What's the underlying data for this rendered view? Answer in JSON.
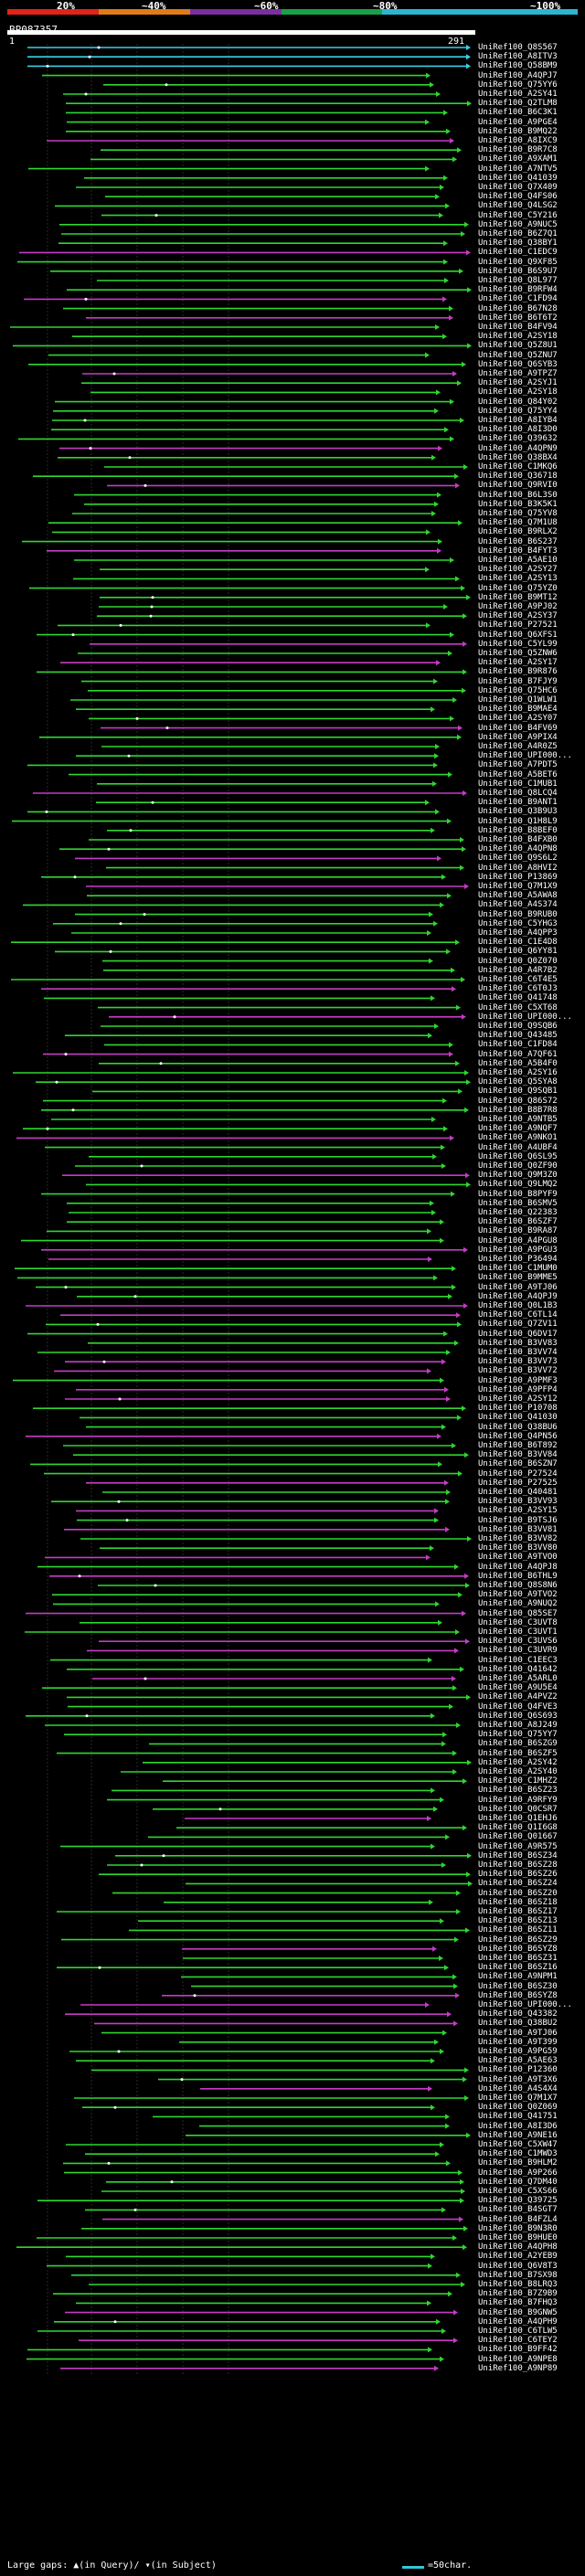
{
  "query_id": "BP087357",
  "footer": {
    "gaps_label": "Large gaps:",
    "gaps_query": "(in Query)/",
    "gaps_subject": "(in Subject)",
    "legend_label": "=50char."
  },
  "colors": {
    "red": "#e3231b",
    "orange": "#e07b1a",
    "purple": "#7b2ea0",
    "green": "#1aa04a",
    "cyan": "#29b7d0",
    "hit_green": "#2fd62f",
    "hit_magenta": "#c43cc4",
    "hit_cyan": "#3ad0e8"
  },
  "chart_data": {
    "type": "alignment-overview",
    "title": "BP087357",
    "identity_scale": [
      "20%",
      "~40%",
      "~60%",
      "~80%",
      "~100%"
    ],
    "query_range": [
      1,
      291
    ],
    "axis_labels": [
      "1",
      "291"
    ],
    "hits": [
      "UniRef100_Q8S567",
      "UniRef100_A8ITV3",
      "UniRef100_Q58BM9",
      "UniRef100_A4QPJ7",
      "UniRef100_Q75YY6",
      "UniRef100_A2SY41",
      "UniRef100_Q2TLM8",
      "UniRef100_B6C3K1",
      "UniRef100_A9PGE4",
      "UniRef100_B9MQ22",
      "UniRef100_A8IXC9",
      "UniRef100_B9R7C8",
      "UniRef100_A9XAM1",
      "UniRef100_A7NTV5",
      "UniRef100_Q41039",
      "UniRef100_Q7X409",
      "UniRef100_Q4FS06",
      "UniRef100_Q4LSG2",
      "UniRef100_C5Y216",
      "UniRef100_A9NUC5",
      "UniRef100_B6Z7Q1",
      "UniRef100_Q38BY1",
      "UniRef100_C1EDC9",
      "UniRef100_Q9XF85",
      "UniRef100_B6S9U7",
      "UniRef100_Q8L977",
      "UniRef100_B9RFW4",
      "UniRef100_C1FD94",
      "UniRef100_B67N28",
      "UniRef100_B6T6T2",
      "UniRef100_B4FV94",
      "UniRef100_A2SY18",
      "UniRef100_Q5Z8U1",
      "UniRef100_Q5ZNU7",
      "UniRef100_Q6SYB3",
      "UniRef100_A9TPZ7",
      "UniRef100_A2SYJ1",
      "UniRef100_A2SY18",
      "UniRef100_Q84Y02",
      "UniRef100_Q75YY4",
      "UniRef100_A8IYB4",
      "UniRef100_A8I3D0",
      "UniRef100_Q39632",
      "UniRef100_A4QPN9",
      "UniRef100_Q38BX4",
      "UniRef100_C1MKQ6",
      "UniRef100_Q36718",
      "UniRef100_Q9RVI0",
      "UniRef100_B6L3S0",
      "UniRef100_B3K5K1",
      "UniRef100_Q75YV8",
      "UniRef100_Q7M1U8",
      "UniRef100_B9RLX2",
      "UniRef100_B6S237",
      "UniRef100_B4FYT3",
      "UniRef100_A5AE10",
      "UniRef100_A2SY27",
      "UniRef100_A2SY13",
      "UniRef100_Q75YZ0",
      "UniRef100_B9MT12",
      "UniRef100_A9PJ02",
      "UniRef100_A2SY37",
      "UniRef100_P27521",
      "UniRef100_Q6XFS1",
      "UniRef100_C5YL99",
      "UniRef100_Q5ZNW6",
      "UniRef100_A2SY17",
      "UniRef100_B9R876",
      "UniRef100_B7FJY9",
      "UniRef100_Q75HC6",
      "UniRef100_Q1WLW1",
      "UniRef100_B9MAE4",
      "UniRef100_A2SY07",
      "UniRef100_B4FV69",
      "UniRef100_A9PIX4",
      "UniRef100_A4R0Z5",
      "UniRef100_UPI000...",
      "UniRef100_A7PDT5",
      "UniRef100_A5BET6",
      "UniRef100_C1MUB1",
      "UniRef100_Q8LCQ4",
      "UniRef100_B9ANT1",
      "UniRef100_Q3B9U3",
      "UniRef100_Q1H8L9",
      "UniRef100_B8BEF0",
      "UniRef100_B4FXB0",
      "UniRef100_A4QPN8",
      "UniRef100_Q9S6L2",
      "UniRef100_A8HVI2",
      "UniRef100_P13869",
      "UniRef100_Q7M1X9",
      "UniRef100_A5AWA8",
      "UniRef100_A4S374",
      "UniRef100_B9RUB0",
      "UniRef100_C5YHG3",
      "UniRef100_A4QPP3",
      "UniRef100_C1E4D8",
      "UniRef100_Q6YY81",
      "UniRef100_Q0Z070",
      "UniRef100_A4R7B2",
      "UniRef100_C6T4E5",
      "UniRef100_C6T0J3",
      "UniRef100_Q41748",
      "UniRef100_C5XT68",
      "UniRef100_UPI000...",
      "UniRef100_Q9SQB6",
      "UniRef100_Q43485",
      "UniRef100_C1FD84",
      "UniRef100_A7QF61",
      "UniRef100_A5B4F0",
      "UniRef100_A2SY16",
      "UniRef100_Q5SYA8",
      "UniRef100_Q9SQB1",
      "UniRef100_Q86S72",
      "UniRef100_B8B7R8",
      "UniRef100_A9NTB5",
      "UniRef100_A9NQF7",
      "UniRef100_A9NKO1",
      "UniRef100_A4UBF4",
      "UniRef100_Q6SL95",
      "UniRef100_Q0ZF90",
      "UniRef100_Q9M3Z0",
      "UniRef100_Q9LMQ2",
      "UniRef100_B8PYF9",
      "UniRef100_B6SMV5",
      "UniRef100_Q22383",
      "UniRef100_B6SZF7",
      "UniRef100_B9RA87",
      "UniRef100_A4PGU8",
      "UniRef100_A9PGU3",
      "UniRef100_P36494",
      "UniRef100_C1MUM0",
      "UniRef100_B9MME5",
      "UniRef100_A9TJ06",
      "UniRef100_A4QPJ9",
      "UniRef100_Q0L1B3",
      "UniRef100_C6TL14",
      "UniRef100_Q7ZV11",
      "UniRef100_Q6DV17",
      "UniRef100_B3VV83",
      "UniRef100_B3VV74",
      "UniRef100_B3VV73",
      "UniRef100_B3VV72",
      "UniRef100_A9PMF3",
      "UniRef100_A9PFP4",
      "UniRef100_A2SY12",
      "UniRef100_P10708",
      "UniRef100_Q41030",
      "UniRef100_Q38BU6",
      "UniRef100_Q4PN56",
      "UniRef100_B6T892",
      "UniRef100_B3VV84",
      "UniRef100_B6SZN7",
      "UniRef100_P27524",
      "UniRef100_P27525",
      "UniRef100_Q40481",
      "UniRef100_B3VV93",
      "UniRef100_A2SY15",
      "UniRef100_B9TSJ6",
      "UniRef100_B3VV81",
      "UniRef100_B3VV82",
      "UniRef100_B3VV80",
      "UniRef100_A9TVO0",
      "UniRef100_A4QPJ8",
      "UniRef100_B6THL9",
      "UniRef100_Q8S8N6",
      "UniRef100_A9TVO2",
      "UniRef100_A9NUQ2",
      "UniRef100_Q85SE7",
      "UniRef100_C3UVT8",
      "UniRef100_C3UVT1",
      "UniRef100_C3UVS6",
      "UniRef100_C3UVR9",
      "UniRef100_C1EEC3",
      "UniRef100_Q41642",
      "UniRef100_A5ARL0",
      "UniRef100_A9U5E4",
      "UniRef100_A4PVZ2",
      "UniRef100_Q4FVE3",
      "UniRef100_Q6S693",
      "UniRef100_A8J249",
      "UniRef100_Q75YY7",
      "UniRef100_B6SZG9",
      "UniRef100_B6SZF5",
      "UniRef100_A2SY42",
      "UniRef100_A2SY40",
      "UniRef100_C1MHZ2",
      "UniRef100_B6SZ23",
      "UniRef100_A9RFY9",
      "UniRef100_Q0CSR7",
      "UniRef100_Q1EHJ6",
      "UniRef100_Q1I6G8",
      "UniRef100_Q01667",
      "UniRef100_A9R575",
      "UniRef100_B6SZ34",
      "UniRef100_B6SZ28",
      "UniRef100_B6SZ26",
      "UniRef100_B6SZ24",
      "UniRef100_B6SZ20",
      "UniRef100_B6SZ18",
      "UniRef100_B6SZ17",
      "UniRef100_B6SZ13",
      "UniRef100_B6SZ11",
      "UniRef100_B6SZ29",
      "UniRef100_B6SYZ8",
      "UniRef100_B6SZ31",
      "UniRef100_B6SZ16",
      "UniRef100_A9NPM1",
      "UniRef100_B6SZ30",
      "UniRef100_B6SYZ8",
      "UniRef100_UPI000...",
      "UniRef100_Q43382",
      "UniRef100_Q38BU2",
      "UniRef100_A9TJ06",
      "UniRef100_A9T399",
      "UniRef100_A9PG59",
      "UniRef100_A5AE63",
      "UniRef100_P12360",
      "UniRef100_A9T3X6",
      "UniRef100_A4S4X4",
      "UniRef100_Q7M1X7",
      "UniRef100_Q0Z069",
      "UniRef100_Q41751",
      "UniRef100_A8I3D6",
      "UniRef100_A9NE16",
      "UniRef100_C5XW47",
      "UniRef100_C1MWD3",
      "UniRef100_B9HLM2",
      "UniRef100_A9P266",
      "UniRef100_Q7DM40",
      "UniRef100_C5XS66",
      "UniRef100_Q39725",
      "UniRef100_B4SGT7",
      "UniRef100_B4FZL4",
      "UniRef100_B9N3R0",
      "UniRef100_B9HUE0",
      "UniRef100_A4QPH8",
      "UniRef100_A2YEB9",
      "UniRef100_Q6V8T3",
      "UniRef100_B7SX98",
      "UniRef100_B8LRQ3",
      "UniRef100_B7Z9B9",
      "UniRef100_B7FHQ3",
      "UniRef100_B9GNW5",
      "UniRef100_A4QPH9",
      "UniRef100_C6TLW5",
      "UniRef100_C6TEY2",
      "UniRef100_B9FF42",
      "UniRef100_A9NPE8",
      "UniRef100_A9NP89"
    ]
  }
}
